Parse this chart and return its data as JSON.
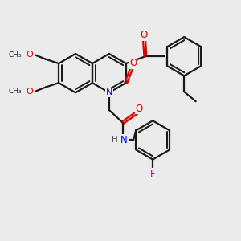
{
  "bg_color": "#ebebeb",
  "bond_color": "#1a1a1a",
  "bond_width": 1.6,
  "N_color": "#0000ee",
  "O_color": "#dd0000",
  "F_color": "#bb00bb",
  "H_color": "#555555",
  "fig_size": [
    3.0,
    3.0
  ],
  "dpi": 100,
  "xlim": [
    0,
    10
  ],
  "ylim": [
    0,
    10
  ]
}
